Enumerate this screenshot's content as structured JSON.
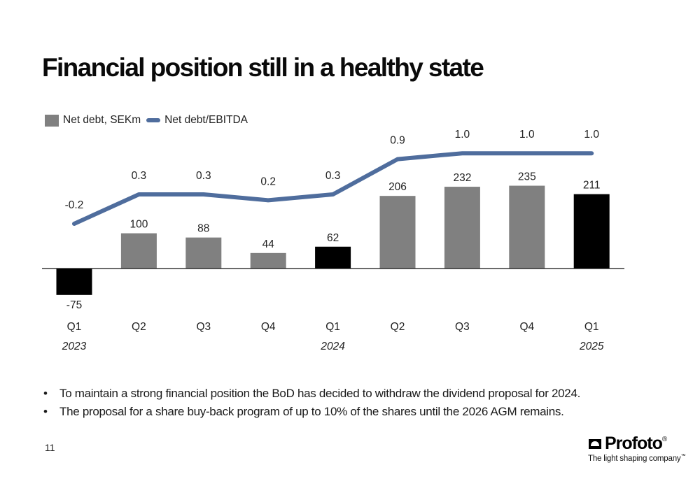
{
  "page": {
    "title": "Financial position still in a healthy state",
    "page_number": "11",
    "bullets": [
      "To maintain a strong financial position the BoD has decided to withdraw the dividend proposal for 2024.",
      "The proposal for a share buy-back program of up to 10% of the shares until the 2026 AGM remains."
    ],
    "brand": {
      "name": "Profoto",
      "registered_mark": "®",
      "tagline": "The light shaping company",
      "trademark_mark": "™"
    }
  },
  "chart_data": {
    "type": "bar",
    "categories": [
      "Q1",
      "Q2",
      "Q3",
      "Q4",
      "Q1",
      "Q2",
      "Q3",
      "Q4",
      "Q1"
    ],
    "year_labels": [
      "2023",
      "",
      "",
      "",
      "2024",
      "",
      "",
      "",
      "2025"
    ],
    "series": [
      {
        "name": "Net debt, SEKm",
        "type": "bar",
        "values": [
          -75,
          100,
          88,
          44,
          62,
          206,
          232,
          235,
          211
        ],
        "value_labels": [
          "-75",
          "100",
          "88",
          "44",
          "62",
          "206",
          "232",
          "235",
          "211"
        ],
        "colors": [
          "#000000",
          "#808080",
          "#808080",
          "#808080",
          "#000000",
          "#808080",
          "#808080",
          "#808080",
          "#000000"
        ]
      },
      {
        "name": "Net debt/EBITDA",
        "type": "line",
        "values": [
          -0.2,
          0.3,
          0.3,
          0.2,
          0.3,
          0.9,
          1.0,
          1.0,
          1.0
        ],
        "value_labels": [
          "-0.2",
          "0.3",
          "0.3",
          "0.2",
          "0.3",
          "0.9",
          "1.0",
          "1.0",
          "1.0"
        ],
        "color": "#4f6d9d"
      }
    ],
    "bar_ylim": [
      -75,
      235
    ],
    "line_ylim": [
      -0.2,
      1.0
    ],
    "legend_position": "top-left",
    "grid": false,
    "gray_bar_color": "#808080",
    "highlight_bar_color": "#000000"
  }
}
